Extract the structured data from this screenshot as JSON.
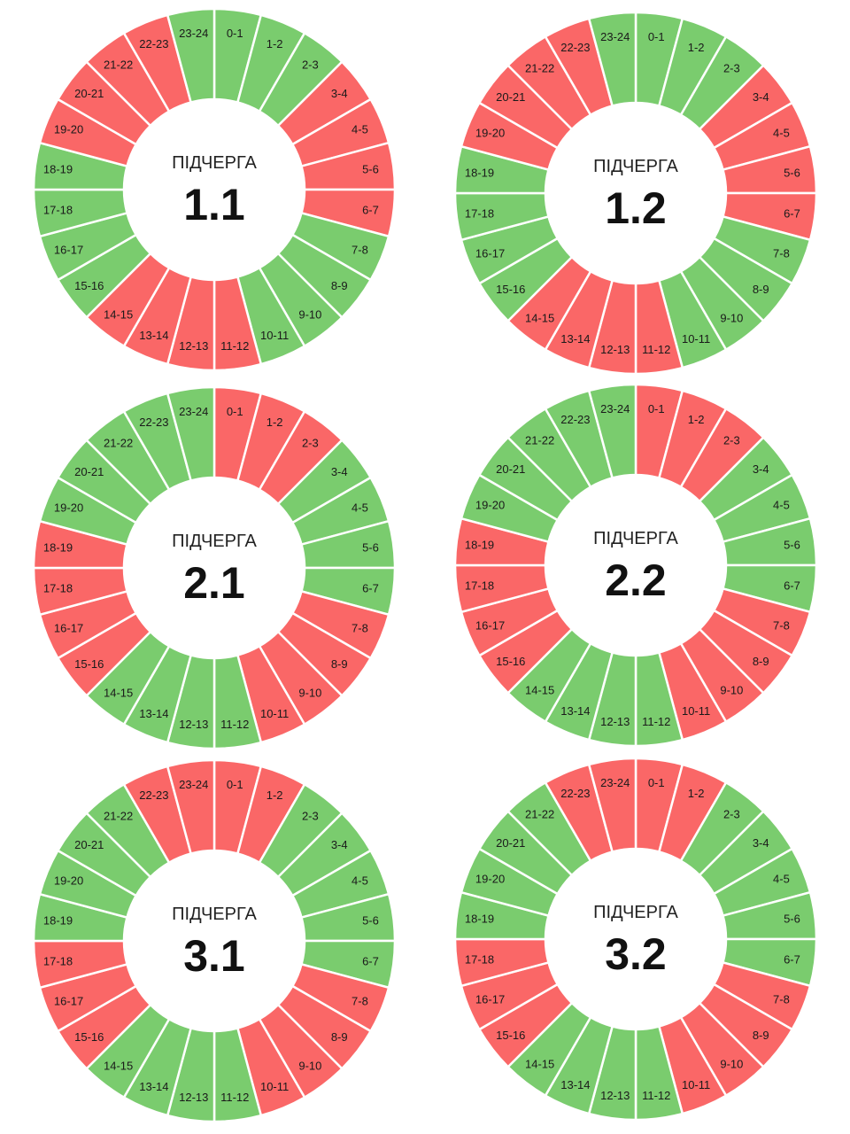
{
  "colors": {
    "off": "#fa6767",
    "on": "#7acc6e"
  },
  "caption": "ПІДЧЕРГА",
  "hour_labels": [
    "0-1",
    "1-2",
    "2-3",
    "3-4",
    "4-5",
    "5-6",
    "6-7",
    "7-8",
    "8-9",
    "9-10",
    "10-11",
    "11-12",
    "12-13",
    "13-14",
    "14-15",
    "15-16",
    "16-17",
    "17-18",
    "18-19",
    "19-20",
    "20-21",
    "21-22",
    "22-23",
    "23-24"
  ],
  "schedules": [
    {
      "title": "1.1",
      "states": [
        "on",
        "on",
        "on",
        "off",
        "off",
        "off",
        "off",
        "on",
        "on",
        "on",
        "on",
        "off",
        "off",
        "off",
        "off",
        "on",
        "on",
        "on",
        "on",
        "off",
        "off",
        "off",
        "off",
        "on"
      ]
    },
    {
      "title": "1.2",
      "states": [
        "on",
        "on",
        "on",
        "off",
        "off",
        "off",
        "off",
        "on",
        "on",
        "on",
        "on",
        "off",
        "off",
        "off",
        "off",
        "on",
        "on",
        "on",
        "on",
        "off",
        "off",
        "off",
        "off",
        "on"
      ]
    },
    {
      "title": "2.1",
      "states": [
        "off",
        "off",
        "off",
        "on",
        "on",
        "on",
        "on",
        "off",
        "off",
        "off",
        "off",
        "on",
        "on",
        "on",
        "on",
        "off",
        "off",
        "off",
        "off",
        "on",
        "on",
        "on",
        "on",
        "on"
      ]
    },
    {
      "title": "2.2",
      "states": [
        "off",
        "off",
        "off",
        "on",
        "on",
        "on",
        "on",
        "off",
        "off",
        "off",
        "off",
        "on",
        "on",
        "on",
        "on",
        "off",
        "off",
        "off",
        "off",
        "on",
        "on",
        "on",
        "on",
        "on"
      ]
    },
    {
      "title": "3.1",
      "states": [
        "off",
        "off",
        "on",
        "on",
        "on",
        "on",
        "on",
        "off",
        "off",
        "off",
        "off",
        "on",
        "on",
        "on",
        "on",
        "off",
        "off",
        "off",
        "on",
        "on",
        "on",
        "on",
        "off",
        "off"
      ]
    },
    {
      "title": "3.2",
      "states": [
        "off",
        "off",
        "on",
        "on",
        "on",
        "on",
        "on",
        "off",
        "off",
        "off",
        "off",
        "on",
        "on",
        "on",
        "on",
        "off",
        "off",
        "off",
        "on",
        "on",
        "on",
        "on",
        "off",
        "off"
      ]
    }
  ]
}
